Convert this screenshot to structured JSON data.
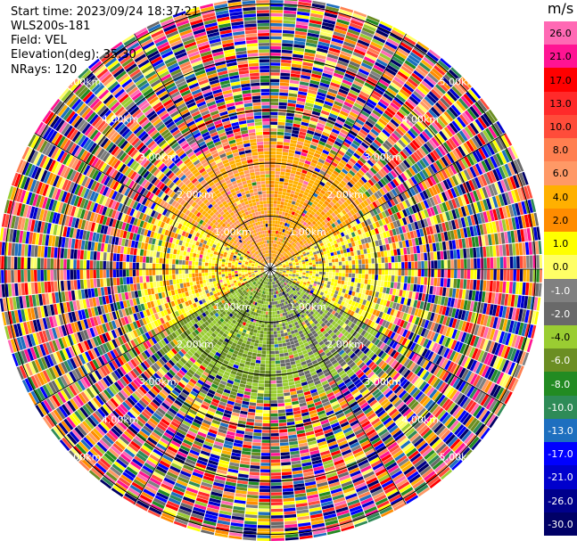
{
  "info": {
    "start_time": "Start time: 2023/09/24 18:37:21",
    "station": "WLS200s-181",
    "field": "Field: VEL",
    "elevation": "Elevation(deg): 35.30",
    "nrays": "NRays: 120"
  },
  "colorbar": {
    "unit": "m/s",
    "ticks": [
      "26.0",
      "21.0",
      "17.0",
      "13.0",
      "10.0",
      "8.0",
      "6.0",
      "4.0",
      "2.0",
      "1.0",
      "0.0",
      "-1.0",
      "-2.0",
      "-4.0",
      "-6.0",
      "-8.0",
      "-10.0",
      "-13.0",
      "-17.0",
      "-21.0",
      "-26.0",
      "-30.0"
    ],
    "colors": [
      "#ff69b4",
      "#ff1493",
      "#ff0000",
      "#ff2a2a",
      "#ff4c3a",
      "#ff7f50",
      "#ff9966",
      "#ffb000",
      "#ff8c00",
      "#ffff00",
      "#ffff66",
      "#808080",
      "#696969",
      "#9acd32",
      "#6b8e23",
      "#228b22",
      "#2e8b57",
      "#1e6fbf",
      "#0000ff",
      "#0000cd",
      "#00008b",
      "#000066"
    ]
  },
  "chart_data": {
    "type": "heatmap",
    "projection": "polar PPI",
    "field": "VEL",
    "units": "m/s",
    "n_rays": 120,
    "elevation_deg": 35.3,
    "color_range": [
      -30.0,
      26.0
    ],
    "range_rings_km": [
      1.0,
      2.0,
      3.0,
      4.0,
      5.0
    ],
    "ring_labels": [
      "1.00km",
      "2.00km",
      "3.00km",
      "4.00km",
      "5.00km"
    ],
    "spokes_deg": [
      0,
      30,
      60,
      90,
      120,
      150,
      180,
      210,
      240,
      270,
      300,
      330
    ],
    "sectors": [
      {
        "azimuth_deg": [
          300,
          360
        ],
        "range_km": [
          0,
          2.5
        ],
        "velocity": 5.0,
        "label": "north-west: orange/yellow"
      },
      {
        "azimuth_deg": [
          0,
          60
        ],
        "range_km": [
          0,
          2.5
        ],
        "velocity": 4.0,
        "label": "north-east: orange/yellow"
      },
      {
        "azimuth_deg": [
          60,
          120
        ],
        "range_km": [
          0,
          2.5
        ],
        "velocity": 0.5,
        "label": "east: grey/yellow"
      },
      {
        "azimuth_deg": [
          120,
          180
        ],
        "range_km": [
          0,
          2.5
        ],
        "velocity": -3.0,
        "label": "south-east: green"
      },
      {
        "azimuth_deg": [
          180,
          240
        ],
        "range_km": [
          0,
          2.5
        ],
        "velocity": -5.0,
        "label": "south-west: dark green"
      },
      {
        "azimuth_deg": [
          240,
          300
        ],
        "range_km": [
          0,
          2.5
        ],
        "velocity": 0.8,
        "label": "west: yellow/grey"
      },
      {
        "azimuth_deg": [
          0,
          360
        ],
        "range_km": [
          2.5,
          6.6
        ],
        "velocity": null,
        "label": "noise"
      }
    ]
  }
}
